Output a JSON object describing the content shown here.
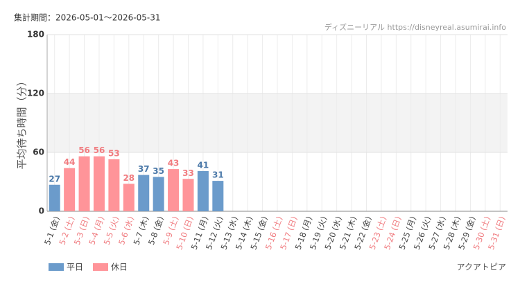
{
  "chart_data": {
    "type": "bar",
    "period": "集計期間：2026-05-01〜2026-05-31",
    "source": "ディズニーリアル https://disneyreal.asumirai.info",
    "y_label": "平均待ち時間（分）",
    "attraction": "アクアトピア",
    "categories": [
      "5-1 (金)",
      "5-2 (土)",
      "5-3 (日)",
      "5-4 (月)",
      "5-5 (火)",
      "5-6 (水)",
      "5-7 (木)",
      "5-8 (金)",
      "5-9 (土)",
      "5-10 (日)",
      "5-11 (月)",
      "5-12 (火)",
      "5-13 (水)",
      "5-14 (木)",
      "5-15 (金)",
      "5-16 (土)",
      "5-17 (日)",
      "5-18 (月)",
      "5-19 (火)",
      "5-20 (水)",
      "5-21 (木)",
      "5-22 (金)",
      "5-23 (土)",
      "5-24 (日)",
      "5-25 (月)",
      "5-26 (火)",
      "5-27 (水)",
      "5-28 (木)",
      "5-29 (金)",
      "5-30 (土)",
      "5-31 (日)"
    ],
    "category_colors": [
      "#444",
      "#f07c80",
      "#f07c80",
      "#f07c80",
      "#f07c80",
      "#f07c80",
      "#444",
      "#444",
      "#f07c80",
      "#f07c80",
      "#444",
      "#444",
      "#444",
      "#444",
      "#444",
      "#f07c80",
      "#f07c80",
      "#444",
      "#444",
      "#444",
      "#444",
      "#444",
      "#f07c80",
      "#f07c80",
      "#444",
      "#444",
      "#444",
      "#444",
      "#444",
      "#f07c80",
      "#f07c80"
    ],
    "series": [
      {
        "name": "平日",
        "color": "#6b9bcb",
        "label_color": "#4a78a8",
        "values": [
          27,
          null,
          null,
          null,
          null,
          null,
          37,
          35,
          null,
          null,
          41,
          31,
          null,
          null,
          null,
          null,
          null,
          null,
          null,
          null,
          null,
          null,
          null,
          null,
          null,
          null,
          null,
          null,
          null,
          null,
          null
        ]
      },
      {
        "name": "休日",
        "color": "#ff9499",
        "label_color": "#f07c80",
        "values": [
          null,
          44,
          56,
          56,
          53,
          28,
          null,
          null,
          43,
          33,
          null,
          null,
          null,
          null,
          null,
          null,
          null,
          null,
          null,
          null,
          null,
          null,
          null,
          null,
          null,
          null,
          null,
          null,
          null,
          null,
          null
        ]
      }
    ],
    "ylim": [
      0,
      180
    ],
    "yticks": [
      0,
      60,
      120,
      180
    ],
    "grid": true
  }
}
